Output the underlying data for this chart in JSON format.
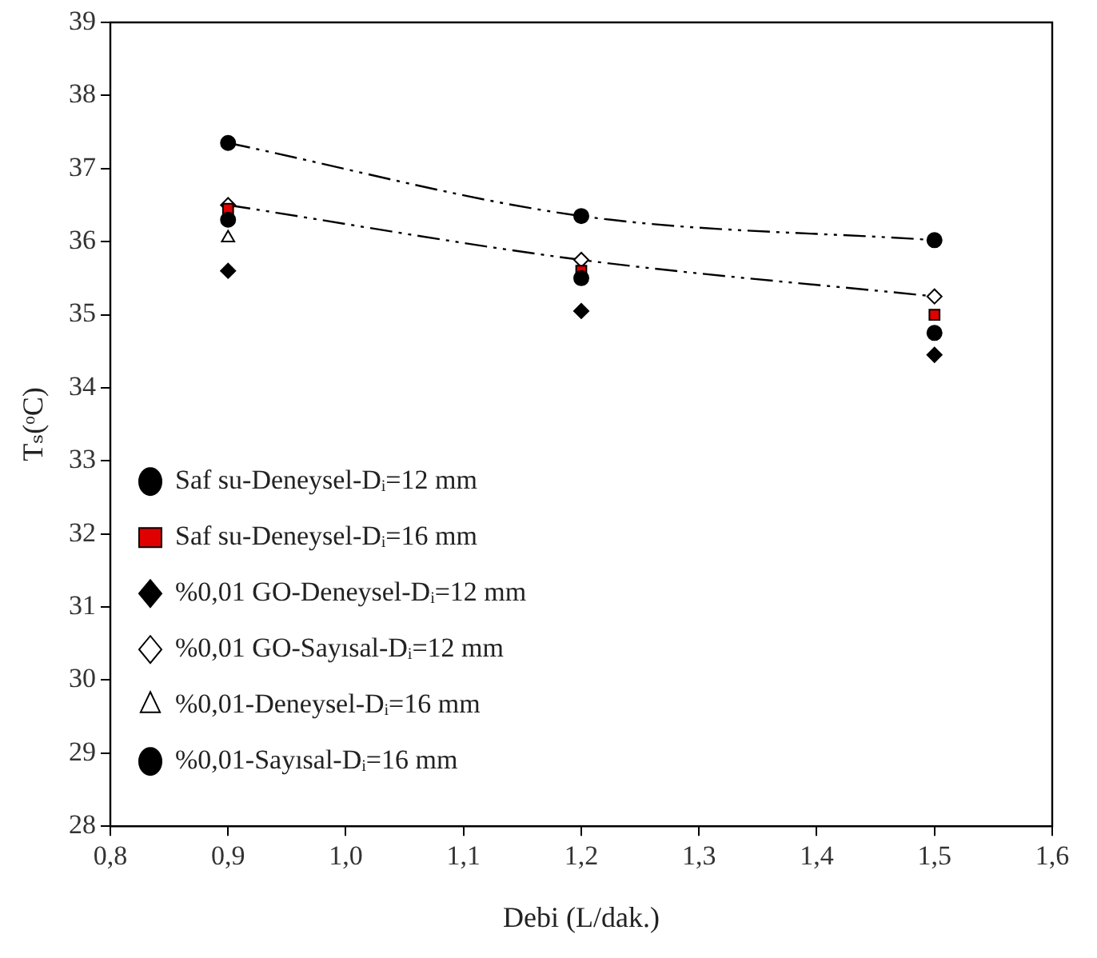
{
  "chart_data": {
    "type": "scatter",
    "xlabel": "Debi (L/dak.)",
    "ylabel": "Tₛ(ᵒC)",
    "xlim": [
      0.8,
      1.6
    ],
    "xticks": [
      {
        "value": 0.8,
        "label": "0,8"
      },
      {
        "value": 0.9,
        "label": "0,9"
      },
      {
        "value": 1.0,
        "label": "1,0"
      },
      {
        "value": 1.1,
        "label": "1,1"
      },
      {
        "value": 1.2,
        "label": "1,2"
      },
      {
        "value": 1.3,
        "label": "1,3"
      },
      {
        "value": 1.4,
        "label": "1,4"
      },
      {
        "value": 1.5,
        "label": "1,5"
      },
      {
        "value": 1.6,
        "label": "1,6"
      }
    ],
    "ylim": [
      28,
      39
    ],
    "yticks": [
      28,
      29,
      30,
      31,
      32,
      33,
      34,
      35,
      36,
      37,
      38,
      39
    ],
    "x": [
      0.9,
      1.2,
      1.5
    ],
    "grid": false,
    "legend": "bottom",
    "series": [
      {
        "name": "Saf su-Deneysel-Dᵢ=12 mm",
        "type": "scatter",
        "marker": "circle",
        "color": "#000000",
        "values": [
          36.3,
          35.5,
          34.75
        ]
      },
      {
        "name": "Saf su-Deneysel-Dᵢ=16 mm",
        "type": "scatter",
        "marker": "square",
        "color": "#e00000",
        "values": [
          36.45,
          35.6,
          35.0
        ]
      },
      {
        "name": "%0,01 GO-Deneysel-Dᵢ=12 mm",
        "type": "scatter",
        "marker": "diamond",
        "color": "#000000",
        "values": [
          35.6,
          35.05,
          34.45
        ]
      },
      {
        "name": "%0,01 GO-Sayısal-Dᵢ=12 mm",
        "type": "line",
        "marker": "diamond",
        "line_style": "dashed",
        "color": "#ffffff",
        "values": [
          36.5,
          35.75,
          35.25
        ]
      },
      {
        "name": "%0,01-Deneysel-Dᵢ=16 mm",
        "type": "scatter",
        "marker": "triangle",
        "color": "#ffffff",
        "values": [
          36.05,
          null,
          null
        ]
      },
      {
        "name": "%0,01-Sayısal-Dᵢ=16 mm",
        "type": "line",
        "marker": "circle",
        "line_style": "dashed",
        "color": "#000000",
        "values": [
          37.35,
          36.35,
          36.02
        ]
      }
    ]
  }
}
